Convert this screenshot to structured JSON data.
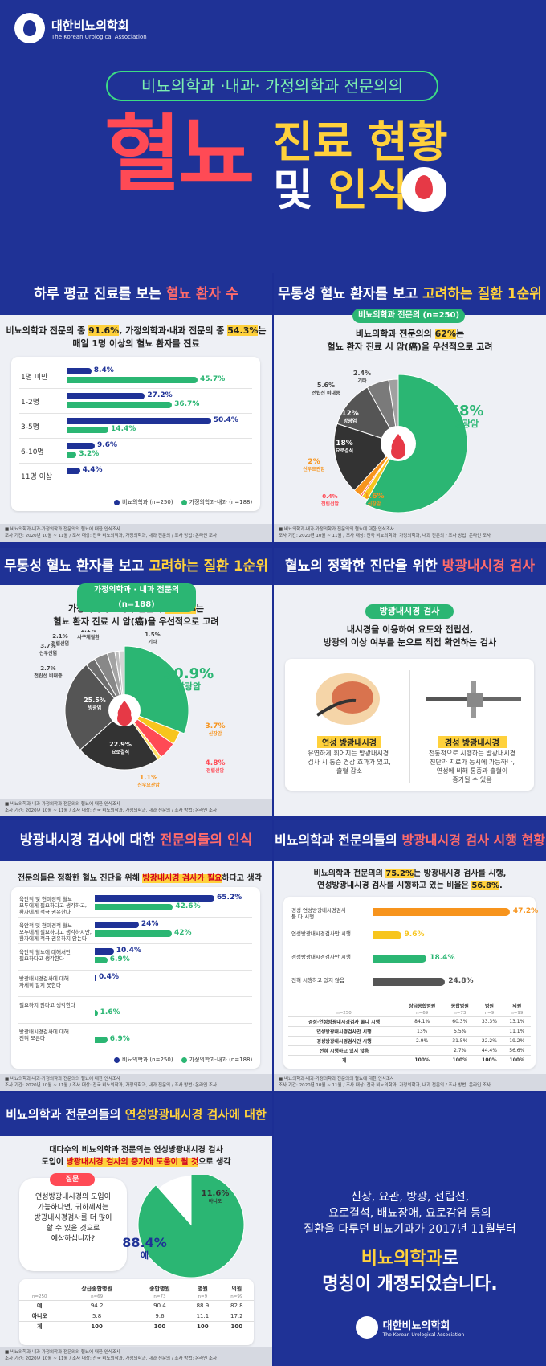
{
  "header": {
    "org_ko": "대한비뇨의학회",
    "org_en": "The Korean Urological Association",
    "subtitle": "비뇨의학과 ·내과· 가정의학과 전문의의",
    "title_main": "혈뇨",
    "title_line2": "진료 현황",
    "title_line3a": "및",
    "title_line3b": "인식"
  },
  "colors": {
    "navy": "#1f3296",
    "green": "#2bb673",
    "yellow": "#ffd13c",
    "red": "#ff4a55",
    "orange": "#f7941d"
  },
  "footer": {
    "line1": "■ 비뇨의학과·내과·가정의학과 전문의의 혈뇨에 대한 인식조사",
    "line2": "조사 기간: 2020년 10월 ~ 11월 / 조사 대상: 전국 비뇨의학과, 가정의학과, 내과 전문의 / 조사 방법: 온라인 조사"
  },
  "s1": {
    "title_a": "하루 평균 진료를 보는 ",
    "title_b": "혈뇨 환자 수",
    "sub1a": "비뇨의학과 전문의 중 ",
    "sub1b": "91.6%",
    "sub1c": ", 가정의학과·내과 전문의 중 ",
    "sub1d": "54.3%",
    "sub1e": "는",
    "sub2": "매일 1명 이상의 혈뇨 환자를 진료",
    "legend_a": "비뇨의학과 (n=250)",
    "legend_b": "가정의학과·내과 (n=188)"
  },
  "chart1": {
    "type": "bar",
    "categories": [
      "1명 미만",
      "1-2명",
      "3-5명",
      "6-10명",
      "11명 이상"
    ],
    "series": [
      {
        "name": "비뇨의학과 (n=250)",
        "values": [
          8.4,
          27.2,
          50.4,
          9.6,
          4.4
        ]
      },
      {
        "name": "가정의학과·내과 (n=188)",
        "values": [
          45.7,
          36.7,
          14.4,
          3.2,
          null
        ]
      }
    ],
    "labels_a": [
      "8.4%",
      "27.2%",
      "50.4%",
      "9.6%",
      "4.4%"
    ],
    "labels_b": [
      "45.7%",
      "36.7%",
      "14.4%",
      "3.2%",
      ""
    ]
  },
  "s2": {
    "title_a": "무통성 혈뇨 환자를 보고 ",
    "title_b": "고려하는 질환 1순위",
    "tag": "비뇨의학과 전문의 (n=250)",
    "sub1a": "비뇨의학과 전문의의 ",
    "sub1b": "62%",
    "sub1c": "는",
    "sub2": "혈뇨 환자 진료 시 암(癌)을 우선적으로 고려"
  },
  "chart2": {
    "type": "pie",
    "labels": [
      "방광암",
      "신장암",
      "전립선암",
      "신우요관암",
      "요로결석",
      "방광염",
      "전립선 비대증",
      "기타"
    ],
    "values": [
      58,
      1.6,
      0.4,
      2,
      18,
      12,
      5.6,
      2.4
    ],
    "label_text": [
      "58%",
      "1.6%",
      "0.4%",
      "2%",
      "18%",
      "12%",
      "5.6%",
      "2.4%"
    ],
    "colors": [
      "#2bb673",
      "#f7c51d",
      "#ff4a55",
      "#f7941d",
      "#333333",
      "#555555",
      "#7a7a7a",
      "#a0a0a0"
    ]
  },
  "s3": {
    "title_a": "무통성 혈뇨 환자를 보고 ",
    "title_b": "고려하는 질환 1순위",
    "tag": "가정의학과 · 내과 전문의 (n=188)",
    "sub1a": "가정의학과 · 내과 전문의 ",
    "sub1b": "40.5%",
    "sub1c": "는",
    "sub2": "혈뇨 환자 진료 시 암(癌)을 우선적으로 고려"
  },
  "chart3": {
    "type": "pie",
    "labels": [
      "방광암",
      "신장암",
      "전립선암",
      "신우요관암",
      "요로결석",
      "방광염",
      "전립선 비대증",
      "신우신염",
      "전립선염",
      "사구체질환",
      "기타"
    ],
    "values": [
      30.9,
      3.7,
      4.8,
      1.1,
      22.9,
      25.5,
      2.7,
      3.7,
      2.1,
      1.1,
      1.5
    ],
    "label_text": [
      "30.9%",
      "3.7%",
      "4.8%",
      "1.1%",
      "22.9%",
      "25.5%",
      "2.7%",
      "3.7%",
      "2.1%",
      "1.1%",
      "1.5%"
    ],
    "colors": [
      "#2bb673",
      "#f7c51d",
      "#ff4a55",
      "#ffe066",
      "#333333",
      "#555555",
      "#6d6d6d",
      "#888888",
      "#a3a3a3",
      "#bdbdbd",
      "#d5d5d5"
    ]
  },
  "s4": {
    "title_a": "혈뇨의 정확한 진단을 위한 ",
    "title_b": "방광내시경 검사",
    "tag": "방광내시경 검사",
    "sub1": "내시경을 이용하여 요도와 전립선,",
    "sub2": "방광의 이상 여부를 눈으로 직접 확인하는 검사",
    "flex_title": "연성 방광내시경",
    "flex_desc": [
      "유연하게 휘어지는 방광내시경.",
      "검사 시 통증 경감 효과가 있고,",
      "출혈 감소"
    ],
    "rigid_title": "경성 방광내시경",
    "rigid_desc": [
      "전통적으로 시행하는 방광내시경",
      "진단과 치료가 동시에 가능하나,",
      "연성에 비해 통증과 출혈이",
      "증가될 수 있음"
    ]
  },
  "s5": {
    "title_a": "방광내시경 검사에 대한 ",
    "title_b": "전문의들의 인식",
    "sub_a": "전문의들은 정확한 혈뇨 진단을 위해 ",
    "sub_b": "방광내시경 검사가 필요",
    "sub_c": "하다고 생각",
    "legend_a": "비뇨의학과 (n=250)",
    "legend_b": "가정의학과·내과 (n=188)"
  },
  "chart5": {
    "type": "bar",
    "categories": [
      [
        "육안적 및 현미경적 혈뇨",
        "모두에게 필요하다고 생각하고,",
        "환자에게 적극 권유한다"
      ],
      [
        "육안적 및 현미경적 혈뇨",
        "모두에게 필요하다고 생각하지만,",
        "환자에게 적극 권유하지 않는다"
      ],
      [
        "육안적 혈뇨에 대해서만",
        "필요하다고 생각한다"
      ],
      [
        "방광내시경검사에 대해",
        "자세히 알지 못한다"
      ],
      [
        "필요하지 않다고 생각한다"
      ],
      [
        "방광내시경검사에 대해",
        "전혀 모른다"
      ]
    ],
    "series": [
      {
        "name": "비뇨의학과 (n=250)",
        "values": [
          65.2,
          24,
          10.4,
          0.4,
          null,
          null
        ]
      },
      {
        "name": "가정의학과·내과 (n=188)",
        "values": [
          42.6,
          42,
          6.9,
          null,
          1.6,
          6.9
        ]
      }
    ],
    "labels_a": [
      "65.2%",
      "24%",
      "10.4%",
      "0.4%",
      "",
      ""
    ],
    "labels_b": [
      "42.6%",
      "42%",
      "6.9%",
      "",
      "1.6%",
      "6.9%"
    ]
  },
  "s6": {
    "title_a": "비뇨의학과 전문의들의 ",
    "title_b": "방광내시경 검사 시행 현황",
    "sub1a": "비뇨의학과 전문의의 ",
    "sub1b": "75.2%",
    "sub1c": "는 방광내시경 검사를 시행,",
    "sub2a": "연성방광내시경 검사를 시행하고 있는 비율은 ",
    "sub2b": "56.8%",
    "sub2c": "."
  },
  "chart6": {
    "type": "bar",
    "categories": [
      [
        "경성·연성방광내시경검사",
        "둘 다 시행"
      ],
      [
        "연성방광내시경검사만 시행"
      ],
      [
        "경성방광내시경검사만 시행"
      ],
      [
        "전혀 시행하고 있지 않음"
      ]
    ],
    "values": [
      47.2,
      9.6,
      18.4,
      24.8
    ],
    "labels": [
      "47.2%",
      "9.6%",
      "18.4%",
      "24.8%"
    ],
    "colors": [
      "#f7941d",
      "#f7c51d",
      "#2bb673",
      "#555555"
    ]
  },
  "table6": {
    "head": [
      "",
      "상급종합병원",
      "종합병원",
      "병원",
      "의원"
    ],
    "sub": [
      "n=250",
      "n=69",
      "n=73",
      "n=9",
      "n=99"
    ],
    "rows": [
      [
        "경성·연성방광내시경검사 둘다 시행",
        "84.1%",
        "60.3%",
        "33.3%",
        "13.1%"
      ],
      [
        "연성방광내시경검사만 시행",
        "13%",
        "5.5%",
        "",
        "11.1%"
      ],
      [
        "경성방광내시경검사만 시행",
        "2.9%",
        "31.5%",
        "22.2%",
        "19.2%"
      ],
      [
        "전혀 시행하고 있지 않음",
        "",
        "2.7%",
        "44.4%",
        "56.6%"
      ],
      [
        "계",
        "100%",
        "100%",
        "100%",
        "100%"
      ]
    ]
  },
  "s7": {
    "title_a": "비뇨의학과 전문의들의 ",
    "title_b": "연성방광내시경 검사에 대한 인식",
    "sub1": "대다수의 비뇨의학과 전문의는 연성방광내시경 검사",
    "sub2a": "도입이 ",
    "sub2b": "방광내시경 검사의 증가에 도움이 될 것",
    "sub2c": "으로 생각",
    "q_tag": "질문",
    "q_text": [
      "연성방광내시경의 도입이",
      "가능하다면, 귀하께서는",
      "방광내시경검사를 더 많이",
      "할 수 있을 것으로",
      "예상하십니까?"
    ]
  },
  "chart7": {
    "type": "pie",
    "labels": [
      "예",
      "아니오"
    ],
    "values": [
      88.4,
      11.6
    ],
    "label_text": [
      "88.4%",
      "11.6%"
    ],
    "colors": [
      "#2bb673",
      "#ffffff"
    ]
  },
  "table7": {
    "head": [
      "",
      "상급종합병원",
      "종합병원",
      "병원",
      "의원"
    ],
    "sub": [
      "n=250",
      "n=69",
      "n=73",
      "n=9",
      "n=99"
    ],
    "rows": [
      [
        "예",
        "94.2",
        "90.4",
        "88.9",
        "82.8"
      ],
      [
        "아니오",
        "5.8",
        "9.6",
        "11.1",
        "17.2"
      ],
      [
        "계",
        "100",
        "100",
        "100",
        "100"
      ]
    ]
  },
  "notice": {
    "l1": "신장, 요관, 방광, 전립선,",
    "l2": "요로결석, 배뇨장애, 요로감염 등의",
    "l3": "질환을 다루던 비뇨기과가 2017년 11월부터",
    "l4a": "비뇨의학과",
    "l4b": "로",
    "l5": "명칭이 개정되었습니다."
  }
}
